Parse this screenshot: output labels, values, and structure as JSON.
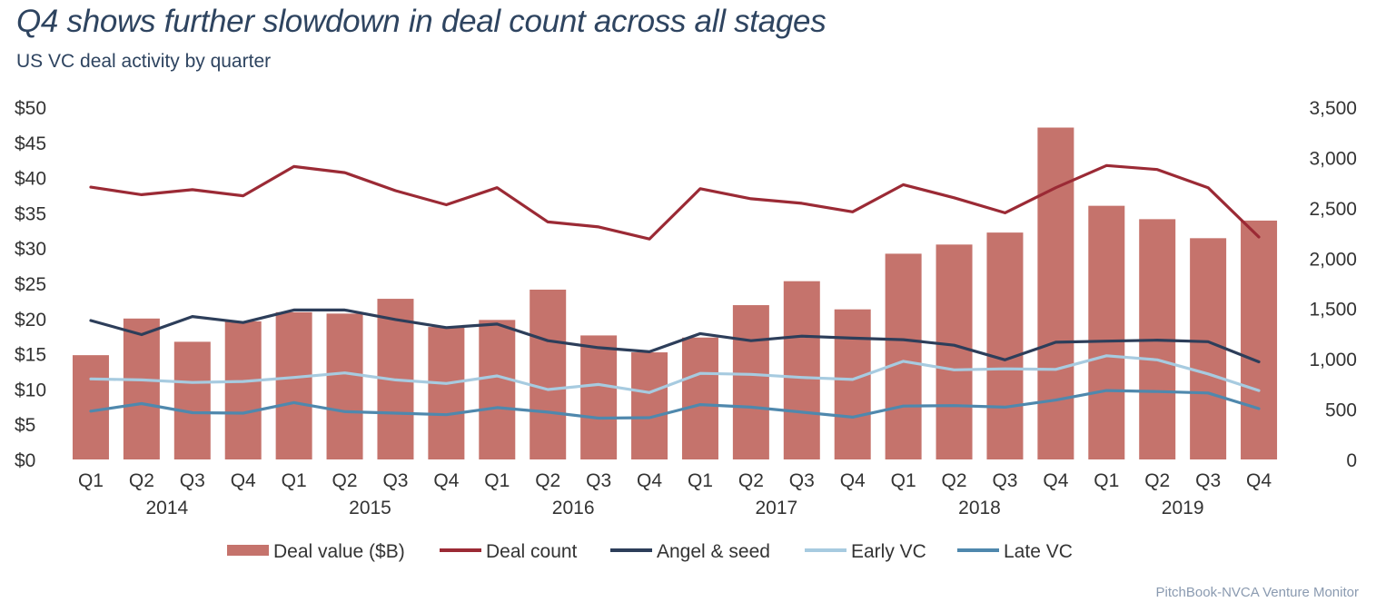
{
  "header": {
    "title": "Q4 shows further slowdown in deal count across all stages",
    "subtitle": "US VC deal activity by quarter"
  },
  "footer": {
    "source": "PitchBook-NVCA Venture Monitor"
  },
  "colors": {
    "deal_value": "#c5736c",
    "deal_count": "#9b2a35",
    "angel_seed": "#2d3e5a",
    "early_vc": "#a7cbe0",
    "late_vc": "#4f88ad",
    "axis_text": "#333333"
  },
  "chart_data": {
    "type": "bar",
    "title": "Q4 shows further slowdown in deal count across all stages",
    "subtitle": "US VC deal activity by quarter",
    "categories": [
      "Q1",
      "Q2",
      "Q3",
      "Q4",
      "Q1",
      "Q2",
      "Q3",
      "Q4",
      "Q1",
      "Q2",
      "Q3",
      "Q4",
      "Q1",
      "Q2",
      "Q3",
      "Q4",
      "Q1",
      "Q2",
      "Q3",
      "Q4",
      "Q1",
      "Q2",
      "Q3",
      "Q4"
    ],
    "year_groups": [
      {
        "label": "2014",
        "start": 0,
        "end": 3
      },
      {
        "label": "2015",
        "start": 4,
        "end": 7
      },
      {
        "label": "2016",
        "start": 8,
        "end": 11
      },
      {
        "label": "2017",
        "start": 12,
        "end": 15
      },
      {
        "label": "2018",
        "start": 16,
        "end": 19
      },
      {
        "label": "2019",
        "start": 20,
        "end": 23
      }
    ],
    "y_left": {
      "ylim": [
        0,
        50
      ],
      "ticks": [
        0,
        5,
        10,
        15,
        20,
        25,
        30,
        35,
        40,
        45,
        50
      ],
      "tick_labels": [
        "$0",
        "$5",
        "$10",
        "$15",
        "$20",
        "$25",
        "$30",
        "$35",
        "$40",
        "$45",
        "$50"
      ]
    },
    "y_right": {
      "ylim": [
        0,
        3500
      ],
      "ticks": [
        0,
        500,
        1000,
        1500,
        2000,
        2500,
        3000,
        3500
      ],
      "tick_labels": [
        "0",
        "500",
        "1,000",
        "1,500",
        "2,000",
        "2,500",
        "3,000",
        "3,500"
      ]
    },
    "series": [
      {
        "name": "Deal value ($B)",
        "kind": "bar",
        "axis": "left",
        "color": "#c5736c",
        "values": [
          14.8,
          20.0,
          16.7,
          19.6,
          20.9,
          20.7,
          22.8,
          18.8,
          19.8,
          24.1,
          17.6,
          15.2,
          17.3,
          21.9,
          25.3,
          21.3,
          29.2,
          30.5,
          32.2,
          47.1,
          36.0,
          34.1,
          31.4,
          33.9
        ]
      },
      {
        "name": "Deal count",
        "kind": "line",
        "axis": "right",
        "color": "#9b2a35",
        "values": [
          2705,
          2630,
          2680,
          2620,
          2910,
          2850,
          2670,
          2530,
          2700,
          2360,
          2310,
          2190,
          2690,
          2590,
          2545,
          2460,
          2730,
          2600,
          2450,
          2700,
          2920,
          2880,
          2700,
          2210
        ]
      },
      {
        "name": "Angel & seed",
        "kind": "line",
        "axis": "right",
        "color": "#2d3e5a",
        "values": [
          1380,
          1240,
          1420,
          1360,
          1485,
          1485,
          1390,
          1310,
          1345,
          1180,
          1110,
          1070,
          1250,
          1180,
          1225,
          1205,
          1190,
          1135,
          990,
          1165,
          1175,
          1185,
          1170,
          970
        ]
      },
      {
        "name": "Early VC",
        "kind": "line",
        "axis": "right",
        "color": "#a7cbe0",
        "values": [
          800,
          790,
          765,
          775,
          815,
          860,
          790,
          755,
          830,
          695,
          745,
          665,
          855,
          845,
          815,
          795,
          975,
          890,
          900,
          895,
          1030,
          990,
          850,
          685
        ]
      },
      {
        "name": "Late VC",
        "kind": "line",
        "axis": "right",
        "color": "#4f88ad",
        "values": [
          480,
          555,
          465,
          460,
          565,
          475,
          460,
          445,
          515,
          470,
          410,
          415,
          545,
          520,
          470,
          420,
          530,
          535,
          520,
          590,
          685,
          675,
          660,
          505
        ]
      }
    ],
    "legend": {
      "placement": "bottom-center",
      "order": [
        "Deal value ($B)",
        "Deal count",
        "Angel & seed",
        "Early VC",
        "Late VC"
      ]
    },
    "grid": false
  }
}
